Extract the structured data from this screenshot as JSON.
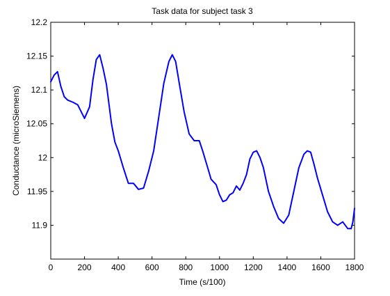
{
  "chart_data": {
    "type": "line",
    "title": "Task data for subject task 3",
    "xlabel": "Time (s/100)",
    "ylabel": "Conductance (microSiemens)",
    "xlim": [
      0,
      1800
    ],
    "ylim": [
      11.85,
      12.2
    ],
    "xticks": [
      0,
      200,
      400,
      600,
      800,
      1000,
      1200,
      1400,
      1600,
      1800
    ],
    "yticks": [
      11.9,
      11.95,
      12,
      12.05,
      12.1,
      12.15,
      12.2
    ],
    "xtick_labels": [
      "0",
      "200",
      "400",
      "600",
      "800",
      "1000",
      "1200",
      "1400",
      "1600",
      "1800"
    ],
    "ytick_labels": [
      "11.9",
      "11.95",
      "12",
      "12.05",
      "12.1",
      "12.15",
      "12.2"
    ],
    "grid": false,
    "line_color": "#0000ff",
    "series": [
      {
        "x": [
          0,
          20,
          40,
          60,
          80,
          100,
          130,
          160,
          200,
          230,
          250,
          270,
          290,
          310,
          330,
          360,
          380,
          400,
          430,
          460,
          490,
          520,
          550,
          580,
          610,
          640,
          670,
          700,
          720,
          740,
          760,
          790,
          820,
          850,
          880,
          900,
          930,
          950,
          980,
          1000,
          1020,
          1040,
          1060,
          1080,
          1100,
          1120,
          1140,
          1160,
          1180,
          1200,
          1220,
          1240,
          1260,
          1290,
          1320,
          1350,
          1380,
          1410,
          1440,
          1470,
          1500,
          1520,
          1540,
          1560,
          1580,
          1610,
          1640,
          1670,
          1700,
          1730,
          1760,
          1780,
          1790,
          1800
        ],
        "y": [
          12.112,
          12.122,
          12.127,
          12.105,
          12.09,
          12.085,
          12.082,
          12.078,
          12.058,
          12.075,
          12.115,
          12.145,
          12.152,
          12.132,
          12.108,
          12.05,
          12.023,
          12.01,
          11.985,
          11.962,
          11.962,
          11.953,
          11.955,
          11.98,
          12.01,
          12.06,
          12.11,
          12.142,
          12.152,
          12.142,
          12.112,
          12.068,
          12.035,
          12.025,
          12.025,
          12.01,
          11.985,
          11.968,
          11.96,
          11.945,
          11.935,
          11.937,
          11.945,
          11.948,
          11.958,
          11.952,
          11.962,
          11.975,
          11.998,
          12.008,
          12.01,
          12.0,
          11.985,
          11.95,
          11.928,
          11.91,
          11.903,
          11.915,
          11.95,
          11.985,
          12.005,
          12.01,
          12.008,
          11.99,
          11.97,
          11.945,
          11.92,
          11.905,
          11.9,
          11.905,
          11.895,
          11.895,
          11.905,
          11.925
        ]
      }
    ]
  }
}
